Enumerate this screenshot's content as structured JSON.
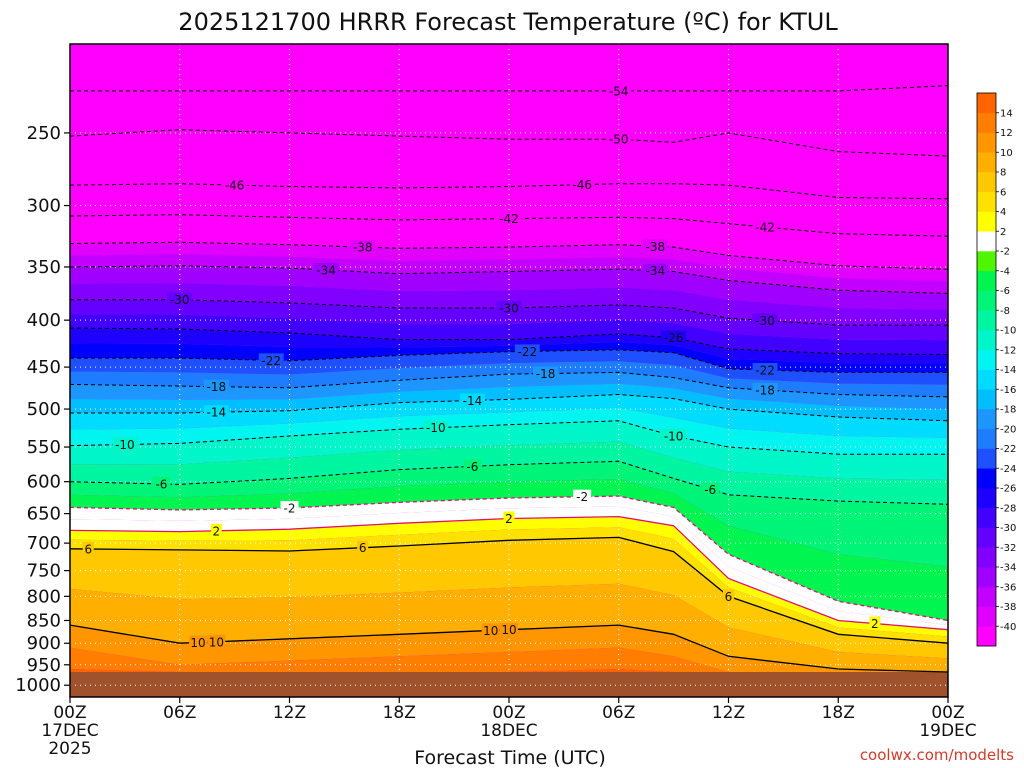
{
  "chart_data": {
    "type": "heatmap",
    "title": "2025121700 HRRR Forecast Temperature (ºC) for KTUL",
    "xlabel": "Forecast Time (UTC)",
    "ylabel": "",
    "credit": "coolwx.com/modelts",
    "x_unit": "forecast hour",
    "xlim": [
      0,
      48
    ],
    "x_ticks": [
      {
        "hour": 0,
        "lines": [
          "00Z",
          "17DEC",
          "2025"
        ]
      },
      {
        "hour": 6,
        "lines": [
          "06Z"
        ]
      },
      {
        "hour": 12,
        "lines": [
          "12Z"
        ]
      },
      {
        "hour": 18,
        "lines": [
          "18Z"
        ]
      },
      {
        "hour": 24,
        "lines": [
          "00Z",
          "18DEC"
        ]
      },
      {
        "hour": 30,
        "lines": [
          "06Z"
        ]
      },
      {
        "hour": 36,
        "lines": [
          "12Z"
        ]
      },
      {
        "hour": 42,
        "lines": [
          "18Z"
        ]
      },
      {
        "hour": 48,
        "lines": [
          "00Z",
          "19DEC"
        ]
      }
    ],
    "y_unit": "hPa",
    "ylim": [
      1030,
      200
    ],
    "y_scale": "log",
    "y_ticks": [
      "250",
      "300",
      "350",
      "400",
      "450",
      "500",
      "550",
      "600",
      "650",
      "700",
      "750",
      "800",
      "850",
      "900",
      "950",
      "1000"
    ],
    "grid": true,
    "colorbar": {
      "placement": "right",
      "colors": [
        "#ff00ff",
        "#e100ff",
        "#c300ff",
        "#a000ff",
        "#8200ff",
        "#6400ff",
        "#4100ff",
        "#1e00ff",
        "#0000ff",
        "#1e50ff",
        "#1e7dff",
        "#1e96ff",
        "#00beff",
        "#00dcff",
        "#00f5f0",
        "#00f5c8",
        "#00f5a0",
        "#00f578",
        "#00f550",
        "#50f500",
        "#ffffff",
        "#ffff00",
        "#ffe100",
        "#ffc800",
        "#ffaf00",
        "#ff9600",
        "#ff7d00",
        "#ff6400"
      ],
      "labels": [
        "-40",
        "-38",
        "-36",
        "-34",
        "-32",
        "-30",
        "-28",
        "-26",
        "-24",
        "-22",
        "-20",
        "-18",
        "-16",
        "-14",
        "-12",
        "-10",
        "-8",
        "-6",
        "-4",
        "-2",
        "2",
        "4",
        "6",
        "8",
        "10",
        "12",
        "14"
      ]
    },
    "times": [
      0,
      6,
      12,
      18,
      24,
      30,
      33,
      36,
      42,
      48
    ],
    "isotherms": [
      {
        "t": -54,
        "p": [
          225,
          225,
          225,
          225,
          225,
          225,
          225,
          225,
          225,
          222
        ],
        "labels": [
          [
            30,
            "-54"
          ]
        ]
      },
      {
        "t": -50,
        "p": [
          252,
          248,
          250,
          252,
          254,
          254,
          256,
          250,
          262,
          265
        ],
        "labels": [
          [
            30,
            "-50"
          ]
        ]
      },
      {
        "t": -46,
        "p": [
          285,
          284,
          286,
          287,
          286,
          284,
          284,
          285,
          294,
          295
        ],
        "labels": [
          [
            9,
            "-46"
          ],
          [
            28,
            "-46"
          ]
        ]
      },
      {
        "t": -42,
        "p": [
          308,
          307,
          309,
          311,
          310,
          309,
          310,
          314,
          322,
          324
        ],
        "labels": [
          [
            24,
            "-42"
          ],
          [
            38,
            "-42"
          ]
        ]
      },
      {
        "t": -38,
        "p": [
          330,
          329,
          331,
          334,
          333,
          331,
          333,
          340,
          349,
          352
        ],
        "labels": [
          [
            16,
            "-38"
          ],
          [
            32,
            "-38"
          ]
        ]
      },
      {
        "t": -34,
        "p": [
          350,
          349,
          351,
          356,
          354,
          352,
          354,
          362,
          371,
          374
        ],
        "labels": [
          [
            14,
            "-34"
          ],
          [
            32,
            "-34"
          ]
        ]
      },
      {
        "t": -30,
        "p": [
          380,
          380,
          383,
          388,
          388,
          385,
          388,
          398,
          405,
          405
        ],
        "labels": [
          [
            6,
            "-30"
          ],
          [
            24,
            "-30"
          ],
          [
            38,
            "-30"
          ]
        ]
      },
      {
        "t": -26,
        "p": [
          408,
          409,
          413,
          420,
          420,
          414,
          418,
          430,
          435,
          436
        ],
        "labels": [
          [
            33,
            "-26"
          ]
        ]
      },
      {
        "t": -22,
        "p": [
          440,
          440,
          443,
          437,
          433,
          431,
          434,
          452,
          456,
          456
        ],
        "labels": [
          [
            11,
            "-22"
          ],
          [
            25,
            "-22"
          ],
          [
            38,
            "-22"
          ]
        ]
      },
      {
        "t": -18,
        "p": [
          470,
          472,
          474,
          465,
          458,
          456,
          462,
          474,
          482,
          485
        ],
        "labels": [
          [
            8,
            "-18"
          ],
          [
            26,
            "-18"
          ],
          [
            38,
            "-18"
          ]
        ]
      },
      {
        "t": -14,
        "p": [
          505,
          505,
          502,
          492,
          488,
          482,
          487,
          500,
          510,
          515
        ],
        "labels": [
          [
            8,
            "-14"
          ],
          [
            22,
            "-14"
          ]
        ]
      },
      {
        "t": -10,
        "p": [
          548,
          545,
          535,
          526,
          520,
          515,
          535,
          550,
          560,
          560
        ],
        "labels": [
          [
            3,
            "-10"
          ],
          [
            20,
            "-10"
          ],
          [
            33,
            "-10"
          ]
        ]
      },
      {
        "t": -6,
        "p": [
          600,
          604,
          595,
          582,
          575,
          570,
          595,
          620,
          630,
          635
        ],
        "labels": [
          [
            5,
            "-6"
          ],
          [
            22,
            "-6"
          ],
          [
            35,
            "-6"
          ]
        ]
      },
      {
        "t": -2,
        "p": [
          640,
          644,
          641,
          632,
          625,
          622,
          640,
          720,
          810,
          850
        ],
        "labels": [
          [
            12,
            "-2"
          ],
          [
            28,
            "-2"
          ]
        ]
      },
      {
        "t": 2,
        "p": [
          678,
          680,
          676,
          666,
          658,
          655,
          670,
          765,
          850,
          870
        ],
        "labels": [
          [
            8,
            "2"
          ],
          [
            24,
            "2"
          ],
          [
            44,
            "2"
          ]
        ]
      },
      {
        "t": 6,
        "p": [
          710,
          712,
          714,
          705,
          695,
          690,
          715,
          800,
          880,
          900
        ],
        "labels": [
          [
            1,
            "6"
          ],
          [
            16,
            "6"
          ],
          [
            36,
            "6"
          ]
        ]
      },
      {
        "t": 10,
        "p": [
          860,
          900,
          890,
          880,
          870,
          860,
          880,
          930,
          960,
          970
        ],
        "labels": [
          [
            7,
            "10"
          ],
          [
            8,
            "10"
          ],
          [
            23,
            "10"
          ],
          [
            24,
            "10"
          ]
        ]
      }
    ]
  }
}
